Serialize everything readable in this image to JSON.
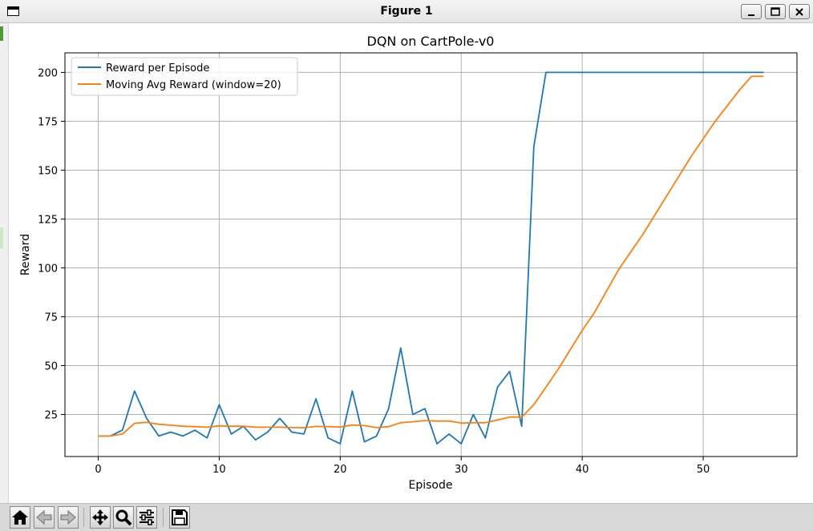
{
  "window": {
    "title": "Figure 1",
    "buttons": [
      {
        "name": "minimize-icon"
      },
      {
        "name": "maximize-icon"
      },
      {
        "name": "close-icon"
      }
    ]
  },
  "toolbar": {
    "buttons": [
      {
        "name": "home-icon",
        "label": "Home"
      },
      {
        "name": "back-icon",
        "label": "Back"
      },
      {
        "name": "forward-icon",
        "label": "Forward"
      },
      {
        "name": "pan-icon",
        "label": "Pan"
      },
      {
        "name": "zoom-icon",
        "label": "Zoom"
      },
      {
        "name": "subplots-icon",
        "label": "Subplots"
      },
      {
        "name": "save-icon",
        "label": "Save"
      }
    ]
  },
  "chart_data": {
    "type": "line",
    "title": "DQN on CartPole-v0",
    "xlabel": "Episode",
    "ylabel": "Reward",
    "xlim": [
      -2.75,
      57.75
    ],
    "ylim": [
      3.5,
      210
    ],
    "xticks": [
      0,
      10,
      20,
      30,
      40,
      50
    ],
    "yticks": [
      25,
      50,
      75,
      100,
      125,
      150,
      175,
      200
    ],
    "grid": true,
    "legend_position": "top-left",
    "series": [
      {
        "name": "Reward per Episode",
        "color": "#1f77b4",
        "x": [
          0,
          1,
          2,
          3,
          4,
          5,
          6,
          7,
          8,
          9,
          10,
          11,
          12,
          13,
          14,
          15,
          16,
          17,
          18,
          19,
          20,
          21,
          22,
          23,
          24,
          25,
          26,
          27,
          28,
          29,
          30,
          31,
          32,
          33,
          34,
          35,
          36,
          37,
          38,
          39,
          40,
          41,
          42,
          43,
          44,
          45,
          46,
          47,
          48,
          49,
          50,
          51,
          52,
          53,
          54,
          55
        ],
        "y": [
          14,
          14,
          17,
          37,
          23,
          14,
          16,
          14,
          17,
          13,
          30,
          15,
          19,
          12,
          16,
          23,
          16,
          15,
          33,
          13,
          10,
          37,
          11,
          14,
          28,
          59,
          25,
          28,
          10,
          15,
          10,
          25,
          13,
          39,
          47,
          19,
          162,
          200,
          200,
          200,
          200,
          200,
          200,
          200,
          200,
          200,
          200,
          200,
          200,
          200,
          200,
          200,
          200,
          200,
          200,
          200
        ]
      },
      {
        "name": "Moving Avg Reward (window=20)",
        "color": "#ff7f0e",
        "x": [
          0,
          1,
          2,
          3,
          4,
          5,
          6,
          7,
          8,
          9,
          10,
          11,
          12,
          13,
          14,
          15,
          16,
          17,
          18,
          19,
          20,
          21,
          22,
          23,
          24,
          25,
          26,
          27,
          28,
          29,
          30,
          31,
          32,
          33,
          34,
          35,
          36,
          37,
          38,
          39,
          40,
          41,
          42,
          43,
          44,
          45,
          46,
          47,
          48,
          49,
          50,
          51,
          52,
          53,
          54,
          55
        ],
        "y": [
          14,
          14,
          15,
          20.5,
          21,
          20,
          19.5,
          19,
          18.8,
          18.5,
          19.2,
          19,
          19,
          18.5,
          18.5,
          18.5,
          18.3,
          18.2,
          18.9,
          18.8,
          18.6,
          19.6,
          19.3,
          18.3,
          18.8,
          20.8,
          21.3,
          21.9,
          21.6,
          21.7,
          20.6,
          20.8,
          20.8,
          22.2,
          23.7,
          23.7,
          30,
          39,
          48,
          58,
          68,
          77,
          88,
          99,
          108,
          117,
          127,
          137,
          147,
          157,
          166,
          175,
          183,
          191,
          198,
          198
        ]
      }
    ]
  }
}
